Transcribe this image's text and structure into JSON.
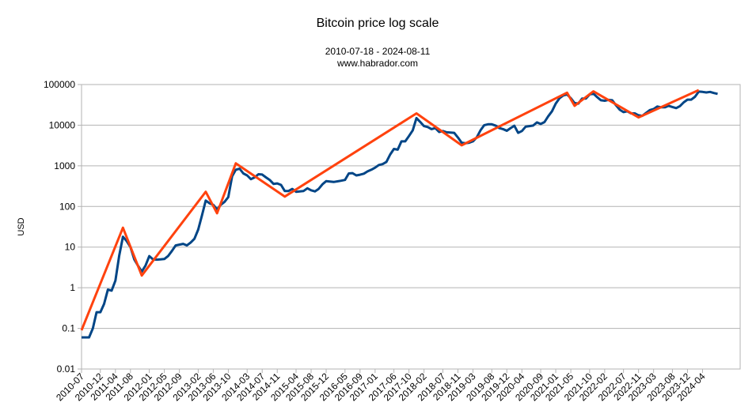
{
  "chart_data": {
    "type": "line",
    "title": "Bitcoin price log scale",
    "subtitle": "2010-07-18 - 2024-08-11",
    "source": "www.habrador.com",
    "y_label": "USD",
    "log_scale": true,
    "grid": true,
    "ylim": [
      0.01,
      100000
    ],
    "yticks": [
      0.01,
      0.1,
      1,
      10,
      100,
      1000,
      10000,
      100000
    ],
    "xlim": [
      "2010-07",
      "2025-02"
    ],
    "xticks": [
      "2010-07",
      "2010-12",
      "2011-04",
      "2011-08",
      "2012-01",
      "2012-05",
      "2012-09",
      "2013-02",
      "2013-06",
      "2013-10",
      "2014-03",
      "2014-07",
      "2014-11",
      "2015-04",
      "2015-08",
      "2015-12",
      "2016-05",
      "2016-09",
      "2017-01",
      "2017-06",
      "2017-10",
      "2018-02",
      "2018-07",
      "2018-11",
      "2019-03",
      "2019-08",
      "2019-12",
      "2020-04",
      "2020-09",
      "2021-01",
      "2021-05",
      "2021-10",
      "2022-02",
      "2022-07",
      "2022-11",
      "2023-03",
      "2023-08",
      "2023-12",
      "2024-04"
    ],
    "series": [
      {
        "color": "#004586",
        "x": [
          "2010-07",
          "2010-08",
          "2010-09",
          "2010-10",
          "2010-11",
          "2010-12",
          "2011-01",
          "2011-02",
          "2011-03",
          "2011-04",
          "2011-05",
          "2011-06",
          "2011-07",
          "2011-08",
          "2011-09",
          "2011-10",
          "2011-11",
          "2011-12",
          "2012-01",
          "2012-02",
          "2012-03",
          "2012-04",
          "2012-05",
          "2012-06",
          "2012-07",
          "2012-08",
          "2012-09",
          "2012-10",
          "2012-11",
          "2012-12",
          "2013-01",
          "2013-02",
          "2013-03",
          "2013-04",
          "2013-05",
          "2013-06",
          "2013-07",
          "2013-08",
          "2013-09",
          "2013-10",
          "2013-11",
          "2013-12",
          "2014-01",
          "2014-02",
          "2014-03",
          "2014-04",
          "2014-05",
          "2014-06",
          "2014-07",
          "2014-08",
          "2014-09",
          "2014-10",
          "2014-11",
          "2014-12",
          "2015-01",
          "2015-02",
          "2015-03",
          "2015-04",
          "2015-05",
          "2015-06",
          "2015-07",
          "2015-08",
          "2015-09",
          "2015-10",
          "2015-11",
          "2015-12",
          "2016-01",
          "2016-02",
          "2016-03",
          "2016-04",
          "2016-05",
          "2016-06",
          "2016-07",
          "2016-08",
          "2016-09",
          "2016-10",
          "2016-11",
          "2016-12",
          "2017-01",
          "2017-02",
          "2017-03",
          "2017-04",
          "2017-05",
          "2017-06",
          "2017-07",
          "2017-08",
          "2017-09",
          "2017-10",
          "2017-11",
          "2017-12",
          "2018-01",
          "2018-02",
          "2018-03",
          "2018-04",
          "2018-05",
          "2018-06",
          "2018-07",
          "2018-08",
          "2018-09",
          "2018-10",
          "2018-11",
          "2018-12",
          "2019-01",
          "2019-02",
          "2019-03",
          "2019-04",
          "2019-05",
          "2019-06",
          "2019-07",
          "2019-08",
          "2019-09",
          "2019-10",
          "2019-11",
          "2019-12",
          "2020-01",
          "2020-02",
          "2020-03",
          "2020-04",
          "2020-05",
          "2020-06",
          "2020-07",
          "2020-08",
          "2020-09",
          "2020-10",
          "2020-11",
          "2020-12",
          "2021-01",
          "2021-02",
          "2021-03",
          "2021-04",
          "2021-05",
          "2021-06",
          "2021-07",
          "2021-08",
          "2021-09",
          "2021-10",
          "2021-11",
          "2021-12",
          "2022-01",
          "2022-02",
          "2022-03",
          "2022-04",
          "2022-05",
          "2022-06",
          "2022-07",
          "2022-08",
          "2022-09",
          "2022-10",
          "2022-11",
          "2022-12",
          "2023-01",
          "2023-02",
          "2023-03",
          "2023-04",
          "2023-05",
          "2023-06",
          "2023-07",
          "2023-08",
          "2023-09",
          "2023-10",
          "2023-11",
          "2023-12",
          "2024-01",
          "2024-02",
          "2024-03",
          "2024-04",
          "2024-05",
          "2024-06",
          "2024-07",
          "2024-08"
        ],
        "values": [
          0.06,
          0.06,
          0.06,
          0.1,
          0.25,
          0.25,
          0.4,
          0.9,
          0.85,
          1.5,
          6,
          18,
          14,
          10,
          5,
          3.5,
          2.5,
          3.5,
          6,
          5,
          4.9,
          5,
          5.1,
          6,
          8,
          11,
          11.5,
          12,
          11,
          13,
          16,
          27,
          60,
          140,
          120,
          110,
          85,
          110,
          130,
          170,
          550,
          800,
          850,
          650,
          580,
          470,
          520,
          620,
          610,
          520,
          450,
          360,
          370,
          340,
          240,
          240,
          270,
          230,
          235,
          240,
          280,
          250,
          235,
          270,
          350,
          420,
          410,
          400,
          415,
          430,
          450,
          650,
          660,
          580,
          605,
          640,
          730,
          800,
          900,
          1050,
          1100,
          1250,
          1900,
          2600,
          2500,
          4000,
          4000,
          5400,
          7500,
          15000,
          12000,
          9500,
          9000,
          8000,
          8500,
          6800,
          7200,
          6700,
          6600,
          6500,
          5000,
          3700,
          3600,
          3700,
          4000,
          5000,
          7500,
          10000,
          10500,
          10500,
          9800,
          8500,
          8000,
          7300,
          8500,
          9700,
          6500,
          7200,
          9200,
          9500,
          9800,
          11700,
          10700,
          11900,
          16500,
          22000,
          34000,
          46000,
          54000,
          57000,
          46000,
          35000,
          34000,
          45000,
          45000,
          57000,
          60000,
          49000,
          41000,
          40000,
          42000,
          41000,
          31000,
          24000,
          21000,
          22000,
          19500,
          19500,
          17500,
          17000,
          20000,
          23500,
          25000,
          28800,
          27500,
          27500,
          30000,
          28000,
          26300,
          29500,
          36500,
          42500,
          42500,
          50000,
          67000,
          66000,
          64000,
          66000,
          62000,
          59000
        ]
      },
      {
        "color": "#ff420e",
        "x": [
          "2010-07",
          "2011-06",
          "2011-11",
          "2013-04",
          "2013-07",
          "2013-12",
          "2015-01",
          "2017-12",
          "2018-12",
          "2021-04",
          "2021-06",
          "2021-11",
          "2022-11",
          "2024-03"
        ],
        "values": [
          0.09,
          30,
          2,
          230,
          68,
          1150,
          175,
          19500,
          3200,
          63000,
          30000,
          68000,
          15500,
          73000
        ]
      }
    ]
  }
}
